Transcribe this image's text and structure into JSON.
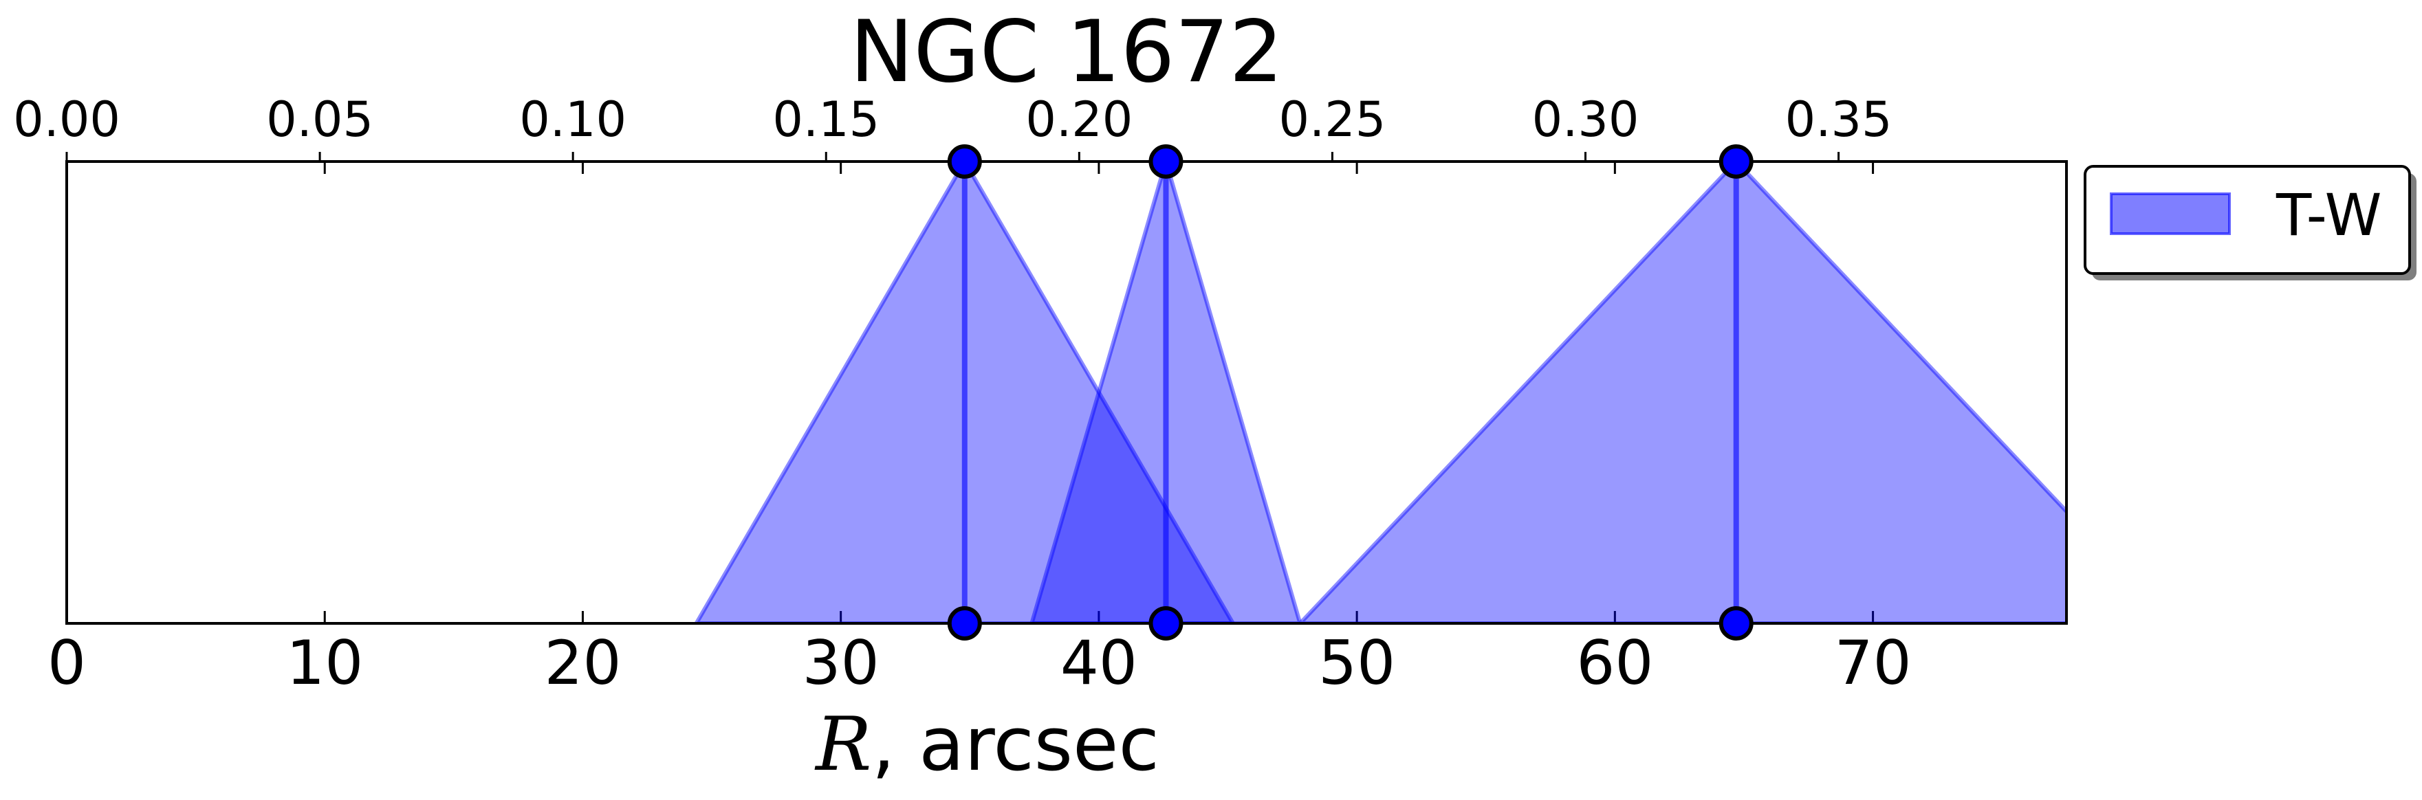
{
  "chart_data": {
    "type": "area",
    "title": "NGC 1672",
    "xlabel": "R, arcsec",
    "xlabel_var": "R",
    "xlabel_rest": ", arcsec",
    "ylabel": "",
    "xlim": [
      0,
      77.5
    ],
    "ylim": [
      0,
      1
    ],
    "x_ticks": [
      0,
      10,
      20,
      30,
      40,
      50,
      60,
      70
    ],
    "x_tick_labels": [
      "0",
      "10",
      "20",
      "30",
      "40",
      "50",
      "60",
      "70"
    ],
    "top_axis": {
      "scale": 0.005097,
      "ticks": [
        0.0,
        0.05,
        0.1,
        0.15,
        0.2,
        0.25,
        0.3,
        0.35
      ],
      "tick_labels": [
        "0.00",
        "0.05",
        "0.10",
        "0.15",
        "0.20",
        "0.25",
        "0.30",
        "0.35"
      ]
    },
    "grid": false,
    "legend": {
      "position": "outside-right",
      "entries": [
        "T-W"
      ]
    },
    "series": [
      {
        "name": "T-W",
        "color": "#0000ff",
        "markers": [
          34.8,
          42.6,
          64.7
        ],
        "triangles": [
          {
            "x": [
              24.4,
              34.8,
              45.2
            ],
            "y": [
              0,
              1,
              0
            ]
          },
          {
            "x": [
              37.4,
              42.6,
              47.8
            ],
            "y": [
              0,
              1,
              0
            ]
          },
          {
            "x": [
              47.8,
              64.7,
              81.6
            ],
            "y": [
              0,
              1,
              0
            ]
          }
        ]
      }
    ]
  }
}
